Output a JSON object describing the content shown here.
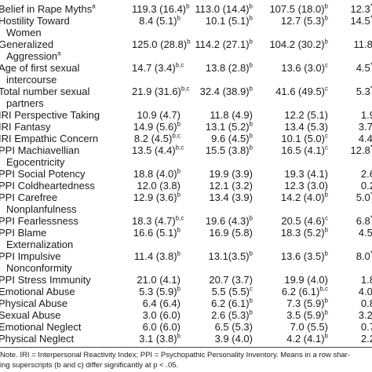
{
  "rows": [
    {
      "label": "Belief in Rape Myths",
      "label_sup": "a",
      "label_cont": "",
      "v1": "119.3 (16.4)",
      "s1": "b",
      "v2": "113.0 (14.4)",
      "s2": "b",
      "v3": "107.5 (18.0)",
      "s3": "b",
      "v4": "12.3",
      "s4": "**"
    },
    {
      "label": "Hostility Toward",
      "label_sup": "",
      "label_cont": "Women",
      "v1": "8.4 (5.1)",
      "s1": "b",
      "v2": "10.1 (5.1)",
      "s2": "b",
      "v3": "12.7 (5.3)",
      "s3": "b",
      "v4": "14.5",
      "s4": "**"
    },
    {
      "label": "Generalized",
      "label_sup": "",
      "label_cont": "Aggression",
      "label_cont_sup": "a",
      "v1": "125.0 (28.8)",
      "s1": "b",
      "v2": "114.2 (27.1)",
      "s2": "b",
      "v3": "104.2 (30.2)",
      "s3": "b",
      "v4": "11.8",
      "s4": "*"
    },
    {
      "label": "Age of first sexual",
      "label_sup": "",
      "label_cont": "intercourse",
      "v1": "14.7 (3.4)",
      "s1": "b,c",
      "v2": "13.8 (2.8)",
      "s2": "b",
      "v3": "13.6 (3.0)",
      "s3": "c",
      "v4": "4.5",
      "s4": "**"
    },
    {
      "label": "Total number sexual",
      "label_sup": "",
      "label_cont": "partners",
      "v1": "21.9 (31.6)",
      "s1": "b,c",
      "v2": "32.4 (38.9)",
      "s2": "b",
      "v3": "41.6 (49.5)",
      "s3": "c",
      "v4": "5.3",
      "s4": "**"
    },
    {
      "label": "IRI Perspective Taking",
      "label_sup": "",
      "label_cont": "",
      "v1": "10.9 (4.7)",
      "s1": "",
      "v2": "11.8 (4.9)",
      "s2": "",
      "v3": "12.2 (5.1)",
      "s3": "",
      "v4": "1.9",
      "s4": ""
    },
    {
      "label": "IRI Fantasy",
      "label_sup": "",
      "label_cont": "",
      "v1": "14.9 (5.6)",
      "s1": "b",
      "v2": "13.1 (5.2)",
      "s2": "b",
      "v3": "13.4 (5.3)",
      "s3": "",
      "v4": "3.7",
      "s4": "*"
    },
    {
      "label": "IRI Empathic Concern",
      "label_sup": "",
      "label_cont": "",
      "v1": "8.2 (4.5)",
      "s1": "b,c",
      "v2": "9.6 (4.5)",
      "s2": "b",
      "v3": "10.1 (5.0)",
      "s3": "c",
      "v4": "4.4",
      "s4": "*"
    },
    {
      "label": "PPI Machiavellian",
      "label_sup": "",
      "label_cont": "Egocentricity",
      "v1": "13.5 (4.4)",
      "s1": "b,c",
      "v2": "15.5 (3.8)",
      "s2": "b",
      "v3": "16.5 (4.1)",
      "s3": "c",
      "v4": "12.8",
      "s4": "**"
    },
    {
      "label": "PPI Social Potency",
      "label_sup": "",
      "label_cont": "",
      "v1": "18.8 (4.0)",
      "s1": "b",
      "v2": "19.9 (3.9)",
      "s2": "",
      "v3": "19.3 (4.1)",
      "s3": "",
      "v4": "2.6",
      "s4": ""
    },
    {
      "label": "PPI Coldheartedness",
      "label_sup": "",
      "label_cont": "",
      "v1": "12.0 (3.8)",
      "s1": "",
      "v2": "12.1 (3.2)",
      "s2": "",
      "v3": "12.3 (3.0)",
      "s3": "",
      "v4": "0.2",
      "s4": ""
    },
    {
      "label": "PPI Carefree",
      "label_sup": "",
      "label_cont": "Nonplanfulness",
      "v1": "12.9 (3.6)",
      "s1": "b",
      "v2": "13.4 (3.9)",
      "s2": "",
      "v3": "14.2 (4.0)",
      "s3": "b",
      "v4": "5.0",
      "s4": "**"
    },
    {
      "label": "PPI Fearlessness",
      "label_sup": "",
      "label_cont": "",
      "v1": "18.3 (4.7)",
      "s1": "b,c",
      "v2": "19.6 (4.3)",
      "s2": "b",
      "v3": "20.5 (4.6)",
      "s3": "c",
      "v4": "6.8",
      "s4": "**"
    },
    {
      "label": "PPI Blame",
      "label_sup": "",
      "label_cont": "Externalization",
      "v1": "16.6 (5.1)",
      "s1": "b",
      "v2": "16.9 (5.8)",
      "s2": "",
      "v3": "18.3 (5.2)",
      "s3": "b",
      "v4": "4.5",
      "s4": "*"
    },
    {
      "label": "PPI Impulsive",
      "label_sup": "",
      "label_cont": "Nonconformity",
      "v1": "11.4 (3.8)",
      "s1": "b",
      "v2": "13.1(3.5)",
      "s2": "b",
      "v3": "13.6 (3.5)",
      "s3": "b",
      "v4": "8.0",
      "s4": "**"
    },
    {
      "label": "PPI Stress Immunity",
      "label_sup": "",
      "label_cont": "",
      "v1": "21.0 (4.1)",
      "s1": "",
      "v2": "20.7 (3.7)",
      "s2": "",
      "v3": "19.9 (4.0)",
      "s3": "",
      "v4": "1.8",
      "s4": ""
    },
    {
      "label": "Emotional Abuse",
      "label_sup": "",
      "label_cont": "",
      "v1": "5.3 (5.9)",
      "s1": "b",
      "v2": "5.5 (5.5)",
      "s2": "c",
      "v3": "6.2 (6.1)",
      "s3": "b,c",
      "v4": "4.0",
      "s4": "*"
    },
    {
      "label": "Physical Abuse",
      "label_sup": "",
      "label_cont": "",
      "v1": "6.4 (6.4)",
      "s1": "",
      "v2": "6.2 (6.1)",
      "s2": "b",
      "v3": "7.3 (5.9)",
      "s3": "b",
      "v4": "0.8",
      "s4": ""
    },
    {
      "label": "Sexual Abuse",
      "label_sup": "",
      "label_cont": "",
      "v1": "3.0 (6.0)",
      "s1": "",
      "v2": "2.6 (5.3)",
      "s2": "b",
      "v3": "3.5 (5.9)",
      "s3": "b",
      "v4": "3.2",
      "s4": "*"
    },
    {
      "label": "Emotional Neglect",
      "label_sup": "",
      "label_cont": "",
      "v1": "6.0 (6.0)",
      "s1": "",
      "v2": "6.5 (5.3)",
      "s2": "",
      "v3": "7.0 (5.5)",
      "s3": "",
      "v4": "0.7",
      "s4": ""
    },
    {
      "label": "Physical Neglect",
      "label_sup": "",
      "label_cont": "",
      "v1": "3.1 (3.8)",
      "s1": "b",
      "v2": "3.9 (4.0)",
      "s2": "",
      "v3": "4.2 (4.1)",
      "s3": "b",
      "v4": "2.2",
      "s4": ""
    }
  ],
  "note": {
    "line1": "Note. IRI = Interpersonal Reactivity Index; PPI = Psychopathic Personality Inventory. Means in a row shar-",
    "line2": "ing superscripts (b and c) differ significantly at p < .05."
  }
}
